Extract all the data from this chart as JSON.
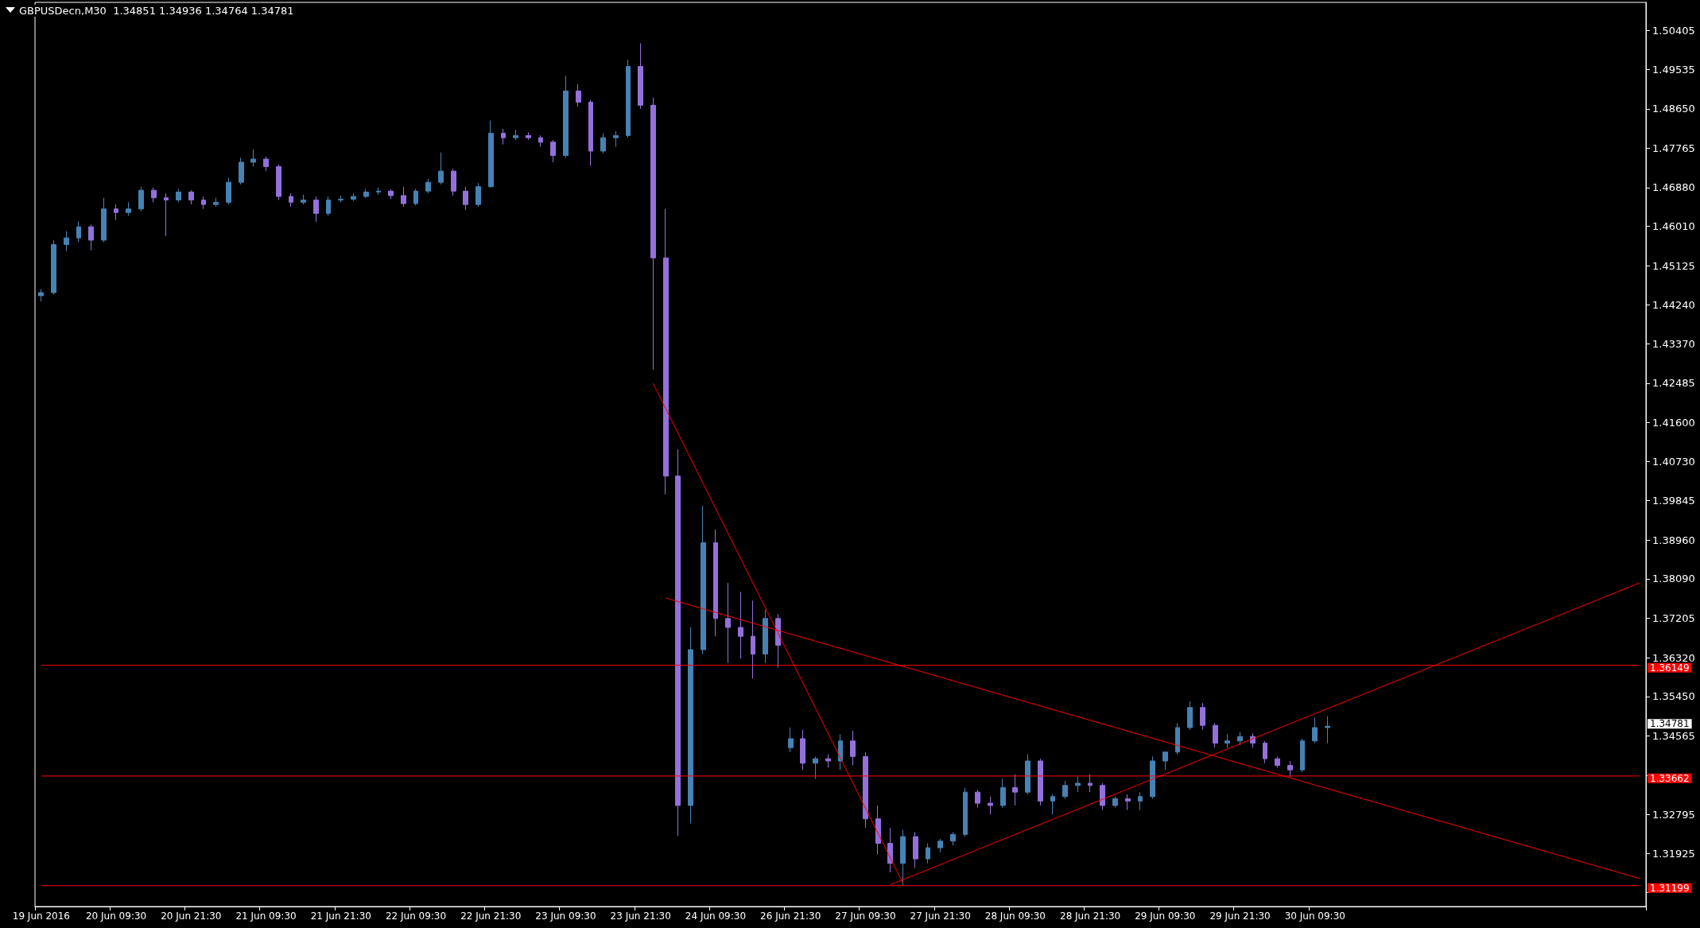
{
  "chart_data": {
    "type": "candlestick",
    "title": "GBPUSDecn,M30  1.34851 1.34936 1.34764 1.34781",
    "categories": [
      "19 Jun 2016",
      null,
      null,
      null,
      null,
      null,
      "20 Jun 09:30",
      null,
      null,
      null,
      null,
      null,
      "20 Jun 21:30",
      null,
      null,
      null,
      null,
      null,
      "21 Jun 09:30",
      null,
      null,
      null,
      null,
      null,
      "21 Jun 21:30",
      null,
      null,
      null,
      null,
      null,
      "22 Jun 09:30",
      null,
      null,
      null,
      null,
      null,
      "22 Jun 21:30",
      null,
      null,
      null,
      null,
      null,
      "23 Jun 09:30",
      null,
      null,
      null,
      null,
      null,
      "23 Jun 21:30",
      null,
      null,
      null,
      null,
      null,
      "24 Jun 09:30",
      null,
      null,
      null,
      null,
      null,
      "26 Jun 21:30",
      null,
      null,
      null,
      null,
      null,
      "27 Jun 09:30",
      null,
      null,
      null,
      null,
      null,
      "27 Jun 21:30",
      null,
      null,
      null,
      null,
      null,
      "28 Jun 09:30",
      null,
      null,
      null,
      null,
      null,
      "28 Jun 21:30",
      null,
      null,
      null,
      null,
      null,
      "29 Jun 09:30",
      null,
      null,
      null,
      null,
      null,
      "29 Jun 21:30",
      null,
      null,
      null,
      null,
      null,
      "30 Jun 09:30",
      null,
      null,
      null,
      null,
      null,
      null,
      null,
      null,
      null,
      null,
      null,
      null,
      null,
      null,
      null,
      null,
      null,
      null,
      null,
      null,
      null,
      null,
      null,
      null,
      null,
      null
    ],
    "ohlc": [
      [
        1.4445,
        1.446,
        1.4432,
        1.4452
      ],
      [
        1.4452,
        1.457,
        1.4448,
        1.456
      ],
      [
        1.456,
        1.459,
        1.4545,
        1.4575
      ],
      [
        1.4575,
        1.4612,
        1.4565,
        1.46
      ],
      [
        1.46,
        1.4605,
        1.4547,
        1.457
      ],
      [
        1.457,
        1.4665,
        1.4565,
        1.464
      ],
      [
        1.464,
        1.465,
        1.4615,
        1.4632
      ],
      [
        1.4632,
        1.4655,
        1.4625,
        1.464
      ],
      [
        1.464,
        1.469,
        1.4635,
        1.4682
      ],
      [
        1.4682,
        1.4688,
        1.4655,
        1.4665
      ],
      [
        1.4665,
        1.4675,
        1.4579,
        1.466
      ],
      [
        1.466,
        1.4685,
        1.4655,
        1.4678
      ],
      [
        1.4678,
        1.4682,
        1.465,
        1.466
      ],
      [
        1.466,
        1.4668,
        1.464,
        1.465
      ],
      [
        1.465,
        1.4665,
        1.4645,
        1.4655
      ],
      [
        1.4655,
        1.471,
        1.465,
        1.47
      ],
      [
        1.47,
        1.4755,
        1.4695,
        1.4745
      ],
      [
        1.4745,
        1.4774,
        1.4735,
        1.4752
      ],
      [
        1.4752,
        1.4758,
        1.4725,
        1.4735
      ],
      [
        1.4735,
        1.474,
        1.466,
        1.4668
      ],
      [
        1.4668,
        1.4675,
        1.4645,
        1.4655
      ],
      [
        1.4655,
        1.4672,
        1.465,
        1.466
      ],
      [
        1.466,
        1.4668,
        1.4611,
        1.463
      ],
      [
        1.463,
        1.4668,
        1.4625,
        1.466
      ],
      [
        1.466,
        1.467,
        1.4655,
        1.4662
      ],
      [
        1.4662,
        1.4675,
        1.4658,
        1.4668
      ],
      [
        1.4668,
        1.4685,
        1.4665,
        1.4678
      ],
      [
        1.4678,
        1.4688,
        1.4672,
        1.468
      ],
      [
        1.468,
        1.4684,
        1.4662,
        1.467
      ],
      [
        1.467,
        1.469,
        1.4645,
        1.4652
      ],
      [
        1.4652,
        1.4685,
        1.4648,
        1.468
      ],
      [
        1.468,
        1.4708,
        1.4675,
        1.47
      ],
      [
        1.47,
        1.4767,
        1.4695,
        1.4725
      ],
      [
        1.4725,
        1.473,
        1.467,
        1.468
      ],
      [
        1.468,
        1.469,
        1.4638,
        1.465
      ],
      [
        1.465,
        1.4698,
        1.4645,
        1.469
      ],
      [
        1.469,
        1.4839,
        1.4688,
        1.481
      ],
      [
        1.481,
        1.482,
        1.4785,
        1.48
      ],
      [
        1.48,
        1.4818,
        1.4795,
        1.4805
      ],
      [
        1.4805,
        1.4812,
        1.4795,
        1.48
      ],
      [
        1.48,
        1.4805,
        1.478,
        1.479
      ],
      [
        1.479,
        1.4795,
        1.4745,
        1.476
      ],
      [
        1.476,
        1.4939,
        1.4755,
        1.4905
      ],
      [
        1.4905,
        1.492,
        1.487,
        1.488
      ],
      [
        1.488,
        1.4885,
        1.4737,
        1.477
      ],
      [
        1.477,
        1.481,
        1.4765,
        1.48
      ],
      [
        1.48,
        1.4815,
        1.478,
        1.4805
      ],
      [
        1.4805,
        1.4975,
        1.48,
        1.496
      ],
      [
        1.496,
        1.5012,
        1.4865,
        1.4873
      ],
      [
        1.4873,
        1.489,
        1.4279,
        1.453
      ],
      [
        1.453,
        1.464,
        1.3999,
        1.404
      ],
      [
        1.404,
        1.41,
        1.3232,
        1.33
      ],
      [
        1.33,
        1.37,
        1.326,
        1.365
      ],
      [
        1.365,
        1.3973,
        1.364,
        1.389
      ],
      [
        1.389,
        1.392,
        1.368,
        1.372
      ],
      [
        1.372,
        1.38,
        1.362,
        1.37
      ],
      [
        1.37,
        1.378,
        1.363,
        1.368
      ],
      [
        1.368,
        1.376,
        1.3585,
        1.364
      ],
      [
        1.364,
        1.374,
        1.362,
        1.372
      ],
      [
        1.372,
        1.373,
        1.361,
        1.366
      ],
      [
        1.343,
        1.3475,
        1.342,
        1.345
      ],
      [
        1.345,
        1.347,
        1.338,
        1.3395
      ],
      [
        1.3395,
        1.341,
        1.336,
        1.3405
      ],
      [
        1.3405,
        1.3415,
        1.3385,
        1.34
      ],
      [
        1.34,
        1.346,
        1.338,
        1.3445
      ],
      [
        1.3445,
        1.3468,
        1.339,
        1.341
      ],
      [
        1.341,
        1.342,
        1.325,
        1.327
      ],
      [
        1.327,
        1.33,
        1.319,
        1.3215
      ],
      [
        1.3215,
        1.325,
        1.315,
        1.317
      ],
      [
        1.317,
        1.3245,
        1.312,
        1.323
      ],
      [
        1.323,
        1.324,
        1.316,
        1.318
      ],
      [
        1.318,
        1.3215,
        1.317,
        1.3205
      ],
      [
        1.3205,
        1.3225,
        1.3195,
        1.322
      ],
      [
        1.322,
        1.324,
        1.321,
        1.3235
      ],
      [
        1.3235,
        1.334,
        1.323,
        1.333
      ],
      [
        1.333,
        1.3335,
        1.3295,
        1.3305
      ],
      [
        1.3305,
        1.332,
        1.328,
        1.33
      ],
      [
        1.33,
        1.336,
        1.3295,
        1.334
      ],
      [
        1.334,
        1.337,
        1.33,
        1.333
      ],
      [
        1.333,
        1.3415,
        1.3325,
        1.34
      ],
      [
        1.34,
        1.3405,
        1.33,
        1.331
      ],
      [
        1.331,
        1.3325,
        1.328,
        1.332
      ],
      [
        1.332,
        1.3355,
        1.3315,
        1.3345
      ],
      [
        1.3345,
        1.3365,
        1.333,
        1.335
      ],
      [
        1.335,
        1.337,
        1.333,
        1.3345
      ],
      [
        1.3345,
        1.335,
        1.329,
        1.33
      ],
      [
        1.33,
        1.332,
        1.3295,
        1.3315
      ],
      [
        1.3315,
        1.3325,
        1.329,
        1.331
      ],
      [
        1.331,
        1.333,
        1.329,
        1.332
      ],
      [
        1.332,
        1.341,
        1.3315,
        1.34
      ],
      [
        1.34,
        1.342,
        1.338,
        1.342
      ],
      [
        1.342,
        1.3485,
        1.3415,
        1.3475
      ],
      [
        1.3475,
        1.3534,
        1.347,
        1.352
      ],
      [
        1.352,
        1.353,
        1.347,
        1.348
      ],
      [
        1.348,
        1.3485,
        1.343,
        1.344
      ],
      [
        1.344,
        1.346,
        1.343,
        1.3445
      ],
      [
        1.3445,
        1.3465,
        1.3435,
        1.3455
      ],
      [
        1.3455,
        1.3462,
        1.343,
        1.344
      ],
      [
        1.344,
        1.3445,
        1.3395,
        1.3405
      ],
      [
        1.3405,
        1.341,
        1.3385,
        1.339
      ],
      [
        1.339,
        1.34,
        1.3364,
        1.338
      ],
      [
        1.338,
        1.345,
        1.3375,
        1.3445
      ],
      [
        1.3445,
        1.3497,
        1.344,
        1.3475
      ],
      [
        1.3475,
        1.35,
        1.344,
        1.34781
      ],
      null,
      null,
      null,
      null,
      null,
      null,
      null,
      null,
      null,
      null,
      null,
      null,
      null,
      null,
      null,
      null,
      null,
      null,
      null,
      null,
      null,
      null,
      null,
      null,
      null
    ],
    "colors": [
      "#4682b4",
      "#4682b4",
      "#4682b4",
      "#4682b4",
      "#9370db",
      "#4682b4",
      "#9370db",
      "#4682b4",
      "#4682b4",
      "#9370db",
      "#9370db",
      "#4682b4",
      "#9370db",
      "#9370db",
      "#4682b4",
      "#4682b4",
      "#4682b4",
      "#4682b4",
      "#9370db",
      "#9370db",
      "#9370db",
      "#4682b4",
      "#9370db",
      "#4682b4",
      "#4682b4",
      "#4682b4",
      "#4682b4",
      "#4682b4",
      "#9370db",
      "#9370db",
      "#4682b4",
      "#4682b4",
      "#4682b4",
      "#9370db",
      "#9370db",
      "#4682b4",
      "#4682b4",
      "#9370db",
      "#4682b4",
      "#9370db",
      "#9370db",
      "#9370db",
      "#4682b4",
      "#9370db",
      "#9370db",
      "#4682b4",
      "#4682b4",
      "#4682b4",
      "#9370db",
      "#9370db",
      "#9370db",
      "#9370db",
      "#4682b4",
      "#4682b4",
      "#9370db",
      "#9370db",
      "#9370db",
      "#9370db",
      "#4682b4",
      "#9370db",
      "#4682b4",
      "#9370db",
      "#4682b4",
      "#9370db",
      "#4682b4",
      "#9370db",
      "#9370db",
      "#9370db",
      "#9370db",
      "#4682b4",
      "#9370db",
      "#4682b4",
      "#4682b4",
      "#4682b4",
      "#4682b4",
      "#9370db",
      "#9370db",
      "#4682b4",
      "#9370db",
      "#4682b4",
      "#9370db",
      "#4682b4",
      "#4682b4",
      "#4682b4",
      "#9370db",
      "#9370db",
      "#4682b4",
      "#9370db",
      "#4682b4",
      "#4682b4",
      "#4682b4",
      "#4682b4",
      "#4682b4",
      "#9370db",
      "#9370db",
      "#4682b4",
      "#4682b4",
      "#9370db",
      "#9370db",
      "#9370db",
      "#9370db",
      "#4682b4",
      "#4682b4",
      "#4682b4",
      null,
      null,
      null,
      null,
      null,
      null,
      null,
      null,
      null,
      null,
      null,
      null,
      null,
      null,
      null,
      null,
      null,
      null,
      null,
      null,
      null,
      null,
      null,
      null,
      null
    ],
    "series": [
      {
        "type": "line",
        "color": "#ff0000",
        "values": [
          null,
          null,
          null,
          null,
          null,
          null,
          null,
          null,
          null,
          null,
          null,
          null,
          null,
          null,
          null,
          null,
          null,
          null,
          null,
          null,
          null,
          null,
          null,
          null,
          null,
          null,
          null,
          null,
          null,
          null,
          null,
          null,
          null,
          null,
          null,
          null,
          null,
          null,
          null,
          null,
          null,
          null,
          null,
          null,
          null,
          null,
          null,
          null,
          null,
          1.4248,
          null,
          null,
          null,
          null,
          null,
          null,
          null,
          null,
          null,
          null,
          null,
          null,
          null,
          null,
          null,
          null,
          null,
          null,
          null,
          1.3126,
          null,
          null,
          null,
          null,
          null,
          null,
          null,
          null,
          null,
          null,
          null,
          null,
          null,
          null,
          null,
          null,
          null,
          null,
          null,
          null,
          null,
          null,
          null,
          null,
          null,
          null,
          null,
          null,
          null,
          null,
          null,
          null,
          null,
          null,
          null,
          null,
          null,
          null,
          null,
          null,
          null,
          null,
          null,
          null,
          null,
          null,
          null,
          null,
          null,
          null,
          null,
          null,
          null,
          null,
          null,
          null,
          null,
          null,
          null
        ]
      },
      {
        "type": "line",
        "color": "#ff0000",
        "values": [
          null,
          null,
          null,
          null,
          null,
          null,
          null,
          null,
          null,
          null,
          null,
          null,
          null,
          null,
          null,
          null,
          null,
          null,
          null,
          null,
          null,
          null,
          null,
          null,
          null,
          null,
          null,
          null,
          null,
          null,
          null,
          null,
          null,
          null,
          null,
          null,
          null,
          null,
          null,
          null,
          null,
          null,
          null,
          null,
          null,
          null,
          null,
          null,
          null,
          null,
          1.3766,
          null,
          null,
          null,
          null,
          null,
          null,
          null,
          null,
          null,
          null,
          null,
          null,
          null,
          null,
          null,
          null,
          null,
          null,
          null,
          null,
          null,
          null,
          null,
          null,
          null,
          null,
          null,
          null,
          null,
          null,
          null,
          null,
          null,
          null,
          null,
          null,
          null,
          null,
          null,
          null,
          null,
          null,
          null,
          null,
          null,
          null,
          null,
          null,
          null,
          null,
          null,
          null,
          null,
          null,
          null,
          null,
          null,
          null,
          null,
          null,
          null,
          null,
          null,
          null,
          null,
          null,
          null,
          null,
          null,
          null,
          null,
          null,
          null,
          null,
          null,
          null,
          null,
          1.3136
        ]
      },
      {
        "type": "line",
        "color": "#ff0000",
        "values": [
          null,
          null,
          null,
          null,
          null,
          null,
          null,
          null,
          null,
          null,
          null,
          null,
          null,
          null,
          null,
          null,
          null,
          null,
          null,
          null,
          null,
          null,
          null,
          null,
          null,
          null,
          null,
          null,
          null,
          null,
          null,
          null,
          null,
          null,
          null,
          null,
          null,
          null,
          null,
          null,
          null,
          null,
          null,
          null,
          null,
          null,
          null,
          null,
          null,
          null,
          null,
          null,
          null,
          null,
          null,
          null,
          null,
          null,
          null,
          null,
          null,
          null,
          null,
          null,
          null,
          null,
          null,
          null,
          1.3122,
          null,
          null,
          null,
          null,
          null,
          null,
          null,
          null,
          null,
          null,
          null,
          null,
          null,
          null,
          null,
          null,
          null,
          null,
          null,
          null,
          null,
          null,
          null,
          null,
          null,
          null,
          null,
          null,
          null,
          null,
          null,
          null,
          null,
          null,
          null,
          null,
          null,
          null,
          null,
          null,
          null,
          null,
          null,
          null,
          null,
          null,
          null,
          null,
          null,
          null,
          null,
          null,
          null,
          null,
          null,
          null,
          null,
          null,
          null,
          1.38
        ]
      }
    ],
    "ylim": [
      1.3073,
      1.5104
    ],
    "yticks": [
      1.50405,
      1.49535,
      {
        "value": 1.4865,
        "label": "1.48650"
      },
      1.47765,
      {
        "value": 1.4688,
        "label": "1.46880"
      },
      {
        "value": 1.4601,
        "label": "1.46010"
      },
      1.45125,
      {
        "value": 1.4424,
        "label": "1.44240"
      },
      {
        "value": 1.4337,
        "label": "1.43370"
      },
      1.42485,
      {
        "value": 1.416,
        "label": "1.41600"
      },
      {
        "value": 1.4073,
        "label": "1.40730"
      },
      1.39845,
      {
        "value": 1.3896,
        "label": "1.38960"
      },
      {
        "value": 1.3809,
        "label": "1.38090"
      },
      1.37205,
      {
        "value": 1.3632,
        "label": "1.36320"
      },
      {
        "value": 1.3545,
        "label": "1.35450"
      },
      1.34565,
      {
        "value": 1.3368,
        "label": null
      },
      1.32795,
      1.31925,
      {
        "value": 1.3104,
        "label": null
      }
    ],
    "ref_lines": [
      {
        "axis": "y",
        "value": 1.36149,
        "label": "1.36149",
        "color": "#ff0000"
      },
      {
        "axis": "y",
        "value": 1.33662,
        "label": "1.33662",
        "color": "#ff0000"
      },
      {
        "axis": "y",
        "value": 1.31199,
        "label": "1.31199",
        "color": "#ff0000"
      }
    ],
    "annotations": [
      "1.34781"
    ],
    "grid": false,
    "line_style": "solid"
  }
}
